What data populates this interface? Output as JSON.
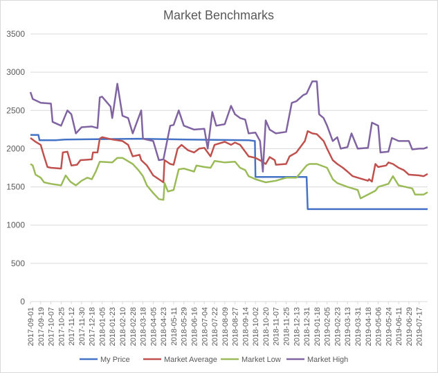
{
  "chart_data": {
    "type": "line",
    "title": "Market Benchmarks",
    "ylim": [
      0,
      3500
    ],
    "yticks": [
      0,
      500,
      1000,
      1500,
      2000,
      2500,
      3000,
      3500
    ],
    "grid": "horizontal",
    "legend_position": "bottom",
    "xticks": [
      "2017-09-01",
      "2017-09-19",
      "2017-10-07",
      "2017-10-25",
      "2017-11-12",
      "2017-11-30",
      "2017-12-18",
      "2018-01-05",
      "2018-01-23",
      "2018-02-10",
      "2018-02-28",
      "2018-03-18",
      "2018-04-05",
      "2018-04-23",
      "2018-05-11",
      "2018-05-29",
      "2018-06-16",
      "2018-07-04",
      "2018-07-22",
      "2018-08-09",
      "2018-08-27",
      "2018-09-14",
      "2018-10-02",
      "2018-10-20",
      "2018-11-07",
      "2018-11-25",
      "2018-12-13",
      "2018-12-31",
      "2019-01-18",
      "2019-02-05",
      "2019-02-23",
      "2019-03-13",
      "2019-03-31",
      "2019-04-18",
      "2019-05-06",
      "2019-05-24",
      "2019-06-11",
      "2019-06-29",
      "2019-07-17"
    ],
    "x_last": "2019-08-01",
    "series": [
      {
        "name": "My Price",
        "color": "#4472c4",
        "points": [
          [
            "2017-09-01",
            2180
          ],
          [
            "2017-09-15",
            2180
          ],
          [
            "2017-09-17",
            2110
          ],
          [
            "2017-10-15",
            2110
          ],
          [
            "2017-11-01",
            2120
          ],
          [
            "2018-03-10",
            2130
          ],
          [
            "2018-06-01",
            2120
          ],
          [
            "2018-09-20",
            2110
          ],
          [
            "2018-10-01",
            2100
          ],
          [
            "2018-10-02",
            1630
          ],
          [
            "2018-12-31",
            1630
          ],
          [
            "2019-01-02",
            1210
          ],
          [
            "2019-08-01",
            1210
          ]
        ]
      },
      {
        "name": "Market Average",
        "color": "#c0504d",
        "points": [
          [
            "2017-09-01",
            2140
          ],
          [
            "2017-09-10",
            2090
          ],
          [
            "2017-09-19",
            2050
          ],
          [
            "2017-09-25",
            1900
          ],
          [
            "2017-10-01",
            1760
          ],
          [
            "2017-10-07",
            1750
          ],
          [
            "2017-10-25",
            1740
          ],
          [
            "2017-10-28",
            1950
          ],
          [
            "2017-11-05",
            1960
          ],
          [
            "2017-11-12",
            1780
          ],
          [
            "2017-11-22",
            1790
          ],
          [
            "2017-11-28",
            1850
          ],
          [
            "2017-12-18",
            1860
          ],
          [
            "2017-12-20",
            1950
          ],
          [
            "2017-12-28",
            1950
          ],
          [
            "2018-01-01",
            2130
          ],
          [
            "2018-01-05",
            2150
          ],
          [
            "2018-01-23",
            2120
          ],
          [
            "2018-02-10",
            2100
          ],
          [
            "2018-02-20",
            2050
          ],
          [
            "2018-02-28",
            1900
          ],
          [
            "2018-03-12",
            1920
          ],
          [
            "2018-03-15",
            1850
          ],
          [
            "2018-03-25",
            1780
          ],
          [
            "2018-04-05",
            1650
          ],
          [
            "2018-04-23",
            1560
          ],
          [
            "2018-04-25",
            1850
          ],
          [
            "2018-05-05",
            1800
          ],
          [
            "2018-05-11",
            1790
          ],
          [
            "2018-05-18",
            2000
          ],
          [
            "2018-05-25",
            2050
          ],
          [
            "2018-06-05",
            1980
          ],
          [
            "2018-06-16",
            1950
          ],
          [
            "2018-06-25",
            2000
          ],
          [
            "2018-07-04",
            2010
          ],
          [
            "2018-07-15",
            1900
          ],
          [
            "2018-07-22",
            2050
          ],
          [
            "2018-08-09",
            2090
          ],
          [
            "2018-08-20",
            2050
          ],
          [
            "2018-08-27",
            2080
          ],
          [
            "2018-09-05",
            2050
          ],
          [
            "2018-09-14",
            1960
          ],
          [
            "2018-09-20",
            1900
          ],
          [
            "2018-10-02",
            1880
          ],
          [
            "2018-10-12",
            1840
          ],
          [
            "2018-10-20",
            1800
          ],
          [
            "2018-10-27",
            1890
          ],
          [
            "2018-11-05",
            1850
          ],
          [
            "2018-11-07",
            1790
          ],
          [
            "2018-11-25",
            1800
          ],
          [
            "2018-12-01",
            1900
          ],
          [
            "2018-12-13",
            1950
          ],
          [
            "2018-12-28",
            2100
          ],
          [
            "2019-01-02",
            2230
          ],
          [
            "2019-01-10",
            2200
          ],
          [
            "2019-01-18",
            2190
          ],
          [
            "2019-01-30",
            2100
          ],
          [
            "2019-02-05",
            2000
          ],
          [
            "2019-02-15",
            1850
          ],
          [
            "2019-02-23",
            1800
          ],
          [
            "2019-03-05",
            1750
          ],
          [
            "2019-03-13",
            1700
          ],
          [
            "2019-03-22",
            1640
          ],
          [
            "2019-03-31",
            1620
          ],
          [
            "2019-04-18",
            1580
          ],
          [
            "2019-04-20",
            1600
          ],
          [
            "2019-04-25",
            1570
          ],
          [
            "2019-05-01",
            1800
          ],
          [
            "2019-05-06",
            1760
          ],
          [
            "2019-05-20",
            1780
          ],
          [
            "2019-05-24",
            1820
          ],
          [
            "2019-06-01",
            1800
          ],
          [
            "2019-06-11",
            1750
          ],
          [
            "2019-06-20",
            1720
          ],
          [
            "2019-06-29",
            1660
          ],
          [
            "2019-07-17",
            1650
          ],
          [
            "2019-07-25",
            1640
          ],
          [
            "2019-08-01",
            1670
          ]
        ]
      },
      {
        "name": "Market Low",
        "color": "#9bbb59",
        "points": [
          [
            "2017-09-01",
            1800
          ],
          [
            "2017-09-05",
            1780
          ],
          [
            "2017-09-10",
            1660
          ],
          [
            "2017-09-19",
            1620
          ],
          [
            "2017-09-25",
            1560
          ],
          [
            "2017-10-07",
            1540
          ],
          [
            "2017-10-25",
            1520
          ],
          [
            "2017-11-02",
            1650
          ],
          [
            "2017-11-10",
            1570
          ],
          [
            "2017-11-20",
            1520
          ],
          [
            "2017-11-30",
            1580
          ],
          [
            "2017-12-10",
            1620
          ],
          [
            "2017-12-18",
            1600
          ],
          [
            "2017-12-25",
            1700
          ],
          [
            "2018-01-01",
            1830
          ],
          [
            "2018-01-23",
            1820
          ],
          [
            "2018-02-01",
            1880
          ],
          [
            "2018-02-10",
            1880
          ],
          [
            "2018-02-28",
            1800
          ],
          [
            "2018-03-10",
            1720
          ],
          [
            "2018-03-18",
            1640
          ],
          [
            "2018-03-25",
            1520
          ],
          [
            "2018-04-05",
            1420
          ],
          [
            "2018-04-15",
            1340
          ],
          [
            "2018-04-23",
            1330
          ],
          [
            "2018-04-25",
            1550
          ],
          [
            "2018-05-01",
            1440
          ],
          [
            "2018-05-11",
            1460
          ],
          [
            "2018-05-20",
            1730
          ],
          [
            "2018-05-29",
            1740
          ],
          [
            "2018-06-16",
            1700
          ],
          [
            "2018-06-20",
            1780
          ],
          [
            "2018-07-04",
            1760
          ],
          [
            "2018-07-15",
            1750
          ],
          [
            "2018-07-22",
            1840
          ],
          [
            "2018-08-09",
            1820
          ],
          [
            "2018-08-27",
            1830
          ],
          [
            "2018-09-05",
            1750
          ],
          [
            "2018-09-14",
            1720
          ],
          [
            "2018-09-20",
            1640
          ],
          [
            "2018-10-02",
            1600
          ],
          [
            "2018-10-20",
            1560
          ],
          [
            "2018-11-07",
            1580
          ],
          [
            "2018-11-25",
            1620
          ],
          [
            "2018-12-13",
            1620
          ],
          [
            "2018-12-31",
            1780
          ],
          [
            "2019-01-05",
            1800
          ],
          [
            "2019-01-18",
            1800
          ],
          [
            "2019-02-05",
            1750
          ],
          [
            "2019-02-15",
            1600
          ],
          [
            "2019-02-23",
            1550
          ],
          [
            "2019-03-13",
            1500
          ],
          [
            "2019-03-31",
            1460
          ],
          [
            "2019-04-05",
            1350
          ],
          [
            "2019-04-18",
            1400
          ],
          [
            "2019-05-01",
            1450
          ],
          [
            "2019-05-06",
            1500
          ],
          [
            "2019-05-24",
            1540
          ],
          [
            "2019-06-01",
            1640
          ],
          [
            "2019-06-11",
            1520
          ],
          [
            "2019-06-29",
            1490
          ],
          [
            "2019-07-05",
            1480
          ],
          [
            "2019-07-10",
            1400
          ],
          [
            "2019-07-25",
            1400
          ],
          [
            "2019-08-01",
            1430
          ]
        ]
      },
      {
        "name": "Market High",
        "color": "#8064a2",
        "points": [
          [
            "2017-09-01",
            2740
          ],
          [
            "2017-09-05",
            2650
          ],
          [
            "2017-09-19",
            2600
          ],
          [
            "2017-10-07",
            2590
          ],
          [
            "2017-10-10",
            2350
          ],
          [
            "2017-10-25",
            2300
          ],
          [
            "2017-11-05",
            2500
          ],
          [
            "2017-11-12",
            2450
          ],
          [
            "2017-11-20",
            2200
          ],
          [
            "2017-11-30",
            2280
          ],
          [
            "2017-12-18",
            2290
          ],
          [
            "2017-12-28",
            2270
          ],
          [
            "2018-01-01",
            2670
          ],
          [
            "2018-01-05",
            2680
          ],
          [
            "2018-01-20",
            2550
          ],
          [
            "2018-01-23",
            2400
          ],
          [
            "2018-02-01",
            2850
          ],
          [
            "2018-02-10",
            2430
          ],
          [
            "2018-02-20",
            2400
          ],
          [
            "2018-02-28",
            2200
          ],
          [
            "2018-03-15",
            2500
          ],
          [
            "2018-03-18",
            2130
          ],
          [
            "2018-04-05",
            2100
          ],
          [
            "2018-04-15",
            1850
          ],
          [
            "2018-04-23",
            1860
          ],
          [
            "2018-05-05",
            2300
          ],
          [
            "2018-05-11",
            2310
          ],
          [
            "2018-05-20",
            2500
          ],
          [
            "2018-05-29",
            2300
          ],
          [
            "2018-06-16",
            2250
          ],
          [
            "2018-07-04",
            2260
          ],
          [
            "2018-07-10",
            2000
          ],
          [
            "2018-07-18",
            2480
          ],
          [
            "2018-07-25",
            2300
          ],
          [
            "2018-08-09",
            2320
          ],
          [
            "2018-08-20",
            2560
          ],
          [
            "2018-08-27",
            2450
          ],
          [
            "2018-09-05",
            2400
          ],
          [
            "2018-09-14",
            2380
          ],
          [
            "2018-09-20",
            2200
          ],
          [
            "2018-10-02",
            2210
          ],
          [
            "2018-10-10",
            2100
          ],
          [
            "2018-10-15",
            1700
          ],
          [
            "2018-10-20",
            2370
          ],
          [
            "2018-10-27",
            2250
          ],
          [
            "2018-11-07",
            2200
          ],
          [
            "2018-11-25",
            2220
          ],
          [
            "2018-12-05",
            2600
          ],
          [
            "2018-12-13",
            2620
          ],
          [
            "2018-12-25",
            2700
          ],
          [
            "2018-12-31",
            2720
          ],
          [
            "2019-01-05",
            2800
          ],
          [
            "2019-01-10",
            2880
          ],
          [
            "2019-01-18",
            2880
          ],
          [
            "2019-01-22",
            2450
          ],
          [
            "2019-01-30",
            2400
          ],
          [
            "2019-02-05",
            2300
          ],
          [
            "2019-02-15",
            2100
          ],
          [
            "2019-02-23",
            2150
          ],
          [
            "2019-03-01",
            2000
          ],
          [
            "2019-03-13",
            2020
          ],
          [
            "2019-03-20",
            2200
          ],
          [
            "2019-03-31",
            2000
          ],
          [
            "2019-04-18",
            2010
          ],
          [
            "2019-04-25",
            2340
          ],
          [
            "2019-05-06",
            2300
          ],
          [
            "2019-05-10",
            1950
          ],
          [
            "2019-05-24",
            1960
          ],
          [
            "2019-05-30",
            2140
          ],
          [
            "2019-06-11",
            2100
          ],
          [
            "2019-06-29",
            2100
          ],
          [
            "2019-07-05",
            1990
          ],
          [
            "2019-07-17",
            2000
          ],
          [
            "2019-07-25",
            2000
          ],
          [
            "2019-08-01",
            2020
          ]
        ]
      }
    ]
  }
}
